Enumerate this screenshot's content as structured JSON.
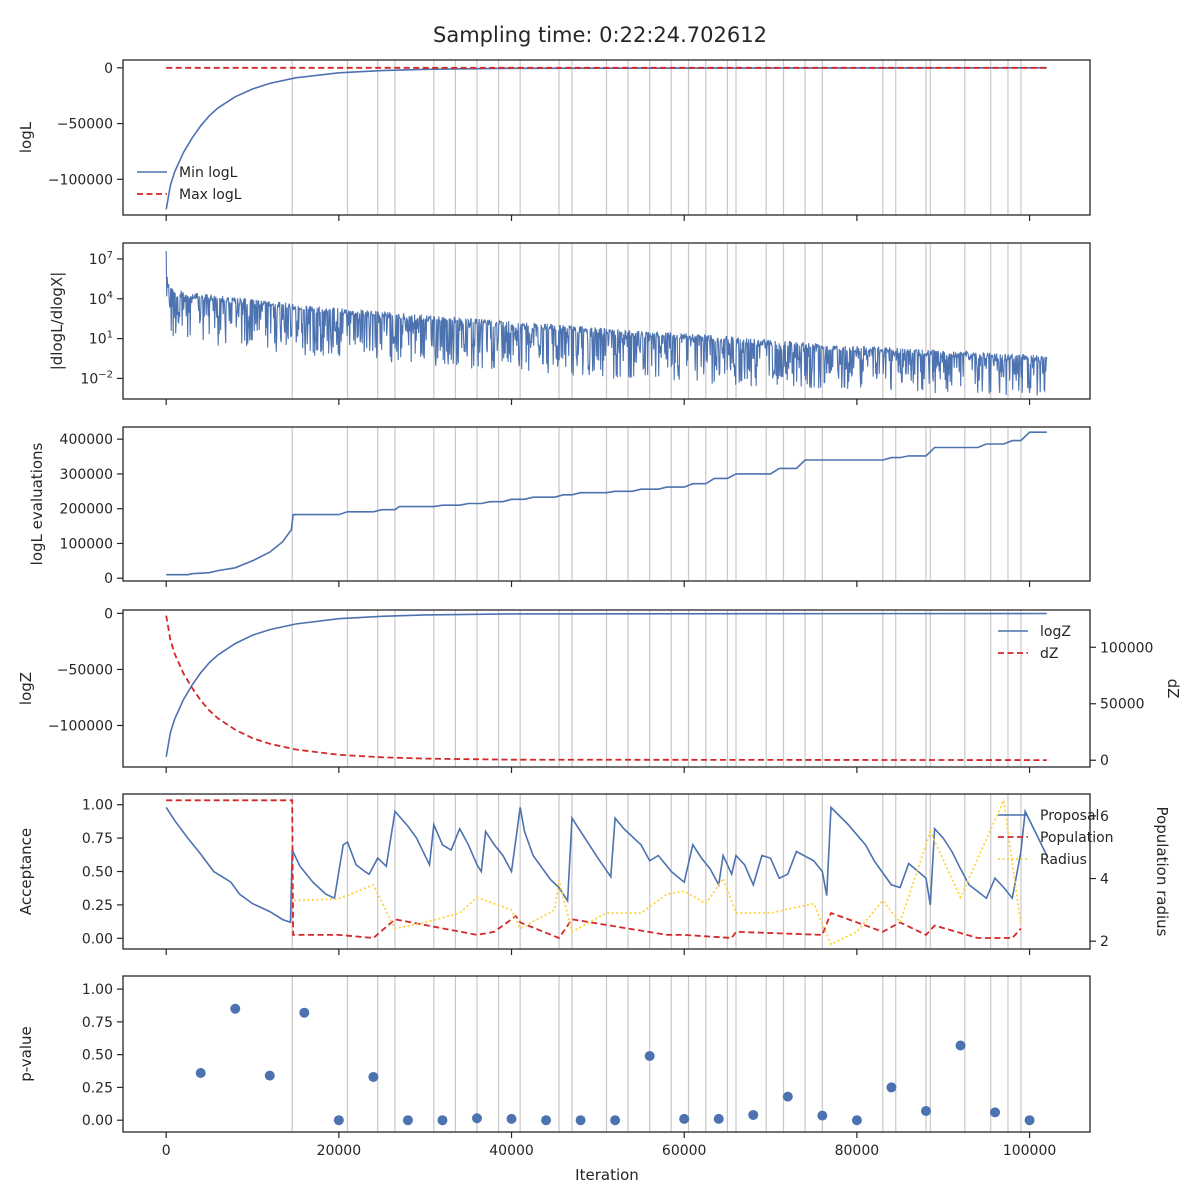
{
  "figure": {
    "title": "Sampling time: 0:22:24.702612",
    "xlabel": "Iteration"
  },
  "colors": {
    "blue": "#4c72b0",
    "red": "#d62728",
    "yellow": "#ffd43a",
    "vline": "#c8c8c8",
    "axis": "#262626"
  },
  "chart_data": [
    {
      "id": "p1",
      "type": "line",
      "ylabel": "logL",
      "xlim": [
        -5000,
        107000
      ],
      "ylim": [
        -132000,
        7000
      ],
      "yticks": [
        0,
        -50000,
        -100000
      ],
      "ytick_labels": [
        "0",
        "−50000",
        "−100000"
      ],
      "legend": {
        "position": "lower-left",
        "entries": [
          "Min logL",
          "Max logL"
        ]
      },
      "series": [
        {
          "name": "Min logL",
          "style": "solid-blue",
          "x": [
            0,
            500,
            1000,
            2000,
            3000,
            4000,
            5000,
            6000,
            8000,
            10000,
            12000,
            15000,
            20000,
            25000,
            30000,
            40000,
            102000
          ],
          "y": [
            -127000,
            -105000,
            -93000,
            -76000,
            -63000,
            -52000,
            -43000,
            -36000,
            -26000,
            -19000,
            -14000,
            -9000,
            -4500,
            -2500,
            -1300,
            -400,
            0
          ]
        },
        {
          "name": "Max logL",
          "style": "dashed-red",
          "x": [
            0,
            102000
          ],
          "y": [
            0,
            0
          ]
        }
      ]
    },
    {
      "id": "p2",
      "type": "line",
      "ylabel": "|dlogL/dlogX|",
      "yscale": "log",
      "xlim": [
        -5000,
        107000
      ],
      "ylim": [
        -3.55,
        8.2
      ],
      "yticks": [
        7,
        4,
        1,
        -2
      ],
      "ytick_labels": [
        "10^7",
        "10^4",
        "10^1",
        "10^-2"
      ],
      "series": [
        {
          "name": "",
          "style": "noisy-band",
          "x": [
            0,
            1000,
            20000,
            40000,
            60000,
            80000,
            102000
          ],
          "upper": [
            5.8,
            4.6,
            3.3,
            2.3,
            1.4,
            0.5,
            -0.3
          ],
          "lower": [
            3.6,
            2.0,
            0.8,
            -0.3,
            -1.1,
            -1.6,
            -2.1
          ],
          "peak": 7.6
        }
      ]
    },
    {
      "id": "p3",
      "type": "line",
      "ylabel": "logL evaluations",
      "xlim": [
        -5000,
        107000
      ],
      "ylim": [
        -8000,
        435000
      ],
      "yticks": [
        0,
        100000,
        200000,
        300000,
        400000
      ],
      "ytick_labels": [
        "0",
        "100000",
        "200000",
        "300000",
        "400000"
      ],
      "series": [
        {
          "name": "",
          "style": "solid-blue",
          "x": [
            0,
            2500,
            3000,
            5000,
            6000,
            8000,
            10000,
            12000,
            13500,
            14500,
            14700,
            20000,
            21000,
            24000,
            25000,
            26500,
            27000,
            31000,
            32000,
            34000,
            35000,
            36500,
            37500,
            39000,
            40000,
            41500,
            42500,
            45000,
            46000,
            47000,
            48000,
            51000,
            52000,
            54000,
            55000,
            57000,
            58000,
            60000,
            61000,
            62500,
            63500,
            65000,
            66000,
            70000,
            71000,
            73000,
            74000,
            83000,
            84000,
            85000,
            86000,
            88000,
            89000,
            94000,
            95000,
            97000,
            98000,
            99000,
            100000,
            102000
          ],
          "y": [
            10000,
            10000,
            13000,
            16000,
            22000,
            30000,
            50000,
            75000,
            105000,
            140000,
            183000,
            183000,
            191000,
            191000,
            197000,
            197000,
            206000,
            206000,
            210000,
            210000,
            215000,
            215000,
            220000,
            220000,
            227000,
            227000,
            233000,
            233000,
            240000,
            240000,
            246000,
            246000,
            250000,
            250000,
            256000,
            256000,
            262000,
            262000,
            272000,
            272000,
            287000,
            287000,
            300000,
            300000,
            316000,
            316000,
            340000,
            340000,
            347000,
            347000,
            352000,
            352000,
            376000,
            376000,
            386000,
            386000,
            396000,
            396000,
            420000,
            420000
          ]
        }
      ]
    },
    {
      "id": "p4",
      "type": "line",
      "ylabel": "logZ",
      "ylabel_right": "dZ",
      "xlim": [
        -5000,
        107000
      ],
      "ylim": [
        -137000,
        3000
      ],
      "ylim_right": [
        -6000,
        133000
      ],
      "yticks": [
        0,
        -50000,
        -100000
      ],
      "ytick_labels": [
        "0",
        "−50000",
        "−100000"
      ],
      "yticks_right": [
        0,
        50000,
        100000
      ],
      "ytick_labels_right": [
        "0",
        "50000",
        "100000"
      ],
      "legend": {
        "position": "upper-right",
        "entries": [
          "logZ",
          "dZ"
        ]
      },
      "series": [
        {
          "name": "logZ",
          "style": "solid-blue",
          "axis": "left",
          "x": [
            0,
            500,
            1000,
            2000,
            3000,
            4000,
            5000,
            6000,
            8000,
            10000,
            12000,
            15000,
            20000,
            25000,
            30000,
            40000,
            102000
          ],
          "y": [
            -128000,
            -106000,
            -94000,
            -77000,
            -64000,
            -53000,
            -44000,
            -37000,
            -27000,
            -19500,
            -14500,
            -9500,
            -4800,
            -2600,
            -1400,
            -450,
            -100
          ]
        },
        {
          "name": "dZ",
          "style": "dashed-red",
          "axis": "right",
          "x": [
            0,
            500,
            1000,
            2000,
            3000,
            4000,
            5000,
            6000,
            8000,
            10000,
            12000,
            15000,
            20000,
            25000,
            30000,
            40000,
            102000
          ],
          "y": [
            128000,
            106000,
            94000,
            77000,
            64000,
            53000,
            44000,
            37000,
            27000,
            19500,
            14500,
            9500,
            4800,
            2600,
            1400,
            450,
            100
          ]
        }
      ]
    },
    {
      "id": "p5",
      "type": "line",
      "ylabel": "Acceptance",
      "ylabel_right": "Population radius",
      "xlim": [
        -5000,
        107000
      ],
      "ylim": [
        -0.08,
        1.08
      ],
      "ylim_right": [
        1.75,
        6.7
      ],
      "yticks": [
        0,
        0.25,
        0.5,
        0.75,
        1.0
      ],
      "ytick_labels": [
        "0.00",
        "0.25",
        "0.50",
        "0.75",
        "1.00"
      ],
      "yticks_right": [
        2,
        4,
        6
      ],
      "ytick_labels_right": [
        "2",
        "4",
        "6"
      ],
      "legend": {
        "position": "upper-right",
        "entries": [
          "Proposal",
          "Population",
          "Radius"
        ]
      },
      "series": [
        {
          "name": "Proposal",
          "style": "solid-blue",
          "axis": "left",
          "x": [
            0,
            1000,
            2500,
            4000,
            5500,
            6500,
            7500,
            8500,
            10000,
            12000,
            13500,
            14400,
            14600,
            15500,
            17000,
            18500,
            19500,
            20500,
            21000,
            22000,
            23000,
            23500,
            24500,
            25500,
            26500,
            28000,
            29000,
            30500,
            31000,
            32000,
            33000,
            34000,
            35000,
            36000,
            36500,
            37000,
            38000,
            39000,
            40000,
            41000,
            41500,
            42500,
            44500,
            45500,
            46500,
            47000,
            48000,
            50000,
            51500,
            52000,
            53000,
            55000,
            56000,
            57000,
            58500,
            60000,
            61000,
            62000,
            63000,
            64000,
            64500,
            65500,
            66000,
            67000,
            68000,
            69000,
            70000,
            71000,
            72000,
            73000,
            75000,
            76000,
            76500,
            77000,
            79000,
            81000,
            82000,
            84000,
            85000,
            86000,
            88000,
            88500,
            89000,
            90000,
            91000,
            92000,
            93000,
            94000,
            95000,
            96000,
            97000,
            98000,
            99000,
            99500,
            102000
          ],
          "y": [
            0.98,
            0.88,
            0.75,
            0.63,
            0.5,
            0.46,
            0.42,
            0.33,
            0.26,
            0.2,
            0.14,
            0.12,
            0.66,
            0.54,
            0.42,
            0.33,
            0.3,
            0.7,
            0.72,
            0.55,
            0.5,
            0.48,
            0.6,
            0.54,
            0.95,
            0.84,
            0.75,
            0.55,
            0.85,
            0.7,
            0.66,
            0.82,
            0.7,
            0.55,
            0.5,
            0.8,
            0.7,
            0.62,
            0.5,
            0.98,
            0.8,
            0.62,
            0.44,
            0.38,
            0.28,
            0.9,
            0.8,
            0.6,
            0.46,
            0.9,
            0.82,
            0.7,
            0.58,
            0.62,
            0.5,
            0.42,
            0.7,
            0.6,
            0.52,
            0.4,
            0.62,
            0.48,
            0.62,
            0.55,
            0.4,
            0.62,
            0.6,
            0.45,
            0.48,
            0.65,
            0.58,
            0.5,
            0.32,
            0.98,
            0.85,
            0.7,
            0.58,
            0.4,
            0.38,
            0.56,
            0.45,
            0.25,
            0.82,
            0.75,
            0.65,
            0.52,
            0.4,
            0.35,
            0.3,
            0.45,
            0.38,
            0.3,
            0.65,
            0.95,
            0.62
          ]
        },
        {
          "name": "Population",
          "style": "dashed-red",
          "axis": "right",
          "x": [
            0,
            14600,
            14700,
            20000,
            24000,
            26500,
            36000,
            38000,
            39500,
            40500,
            41000,
            45500,
            47000,
            58000,
            60000,
            65500,
            66000,
            76000,
            77000,
            83000,
            85000,
            88000,
            89000,
            94000,
            98000,
            99000
          ],
          "y": [
            6.5,
            6.5,
            2.2,
            2.2,
            2.1,
            2.7,
            2.2,
            2.3,
            2.6,
            2.8,
            2.6,
            2.1,
            2.7,
            2.2,
            2.2,
            2.1,
            2.3,
            2.2,
            2.9,
            2.3,
            2.6,
            2.2,
            2.5,
            2.1,
            2.1,
            2.4
          ]
        },
        {
          "name": "Radius",
          "style": "dotted-yellow",
          "axis": "right",
          "x": [
            14800,
            20000,
            24000,
            26500,
            30000,
            34000,
            36000,
            40000,
            41000,
            45000,
            45500,
            47000,
            51000,
            55000,
            58000,
            60000,
            62500,
            64500,
            66000,
            70000,
            75000,
            77000,
            80000,
            83000,
            85000,
            88500,
            92000,
            97000,
            99000
          ],
          "y": [
            3.3,
            3.35,
            3.8,
            2.4,
            2.6,
            2.9,
            3.4,
            3.0,
            2.4,
            3.0,
            3.95,
            2.3,
            2.9,
            2.9,
            3.5,
            3.6,
            3.2,
            4.0,
            2.9,
            2.9,
            3.2,
            1.9,
            2.3,
            3.3,
            2.6,
            5.5,
            3.4,
            6.5,
            2.5
          ]
        }
      ]
    },
    {
      "id": "p6",
      "type": "scatter",
      "ylabel": "p-value",
      "xlim": [
        -5000,
        107000
      ],
      "ylim": [
        -0.09,
        1.1
      ],
      "yticks": [
        0,
        0.25,
        0.5,
        0.75,
        1.0
      ],
      "ytick_labels": [
        "0.00",
        "0.25",
        "0.50",
        "0.75",
        "1.00"
      ],
      "xticks": [
        0,
        20000,
        40000,
        60000,
        80000,
        100000
      ],
      "xtick_labels": [
        "0",
        "20000",
        "40000",
        "60000",
        "80000",
        "100000"
      ],
      "series": [
        {
          "name": "",
          "style": "dots-blue",
          "x": [
            4000,
            8000,
            12000,
            16000,
            20000,
            24000,
            28000,
            32000,
            36000,
            40000,
            44000,
            48000,
            52000,
            56000,
            60000,
            64000,
            68000,
            72000,
            76000,
            80000,
            84000,
            88000,
            92000,
            96000,
            100000
          ],
          "y": [
            0.36,
            0.85,
            0.34,
            0.82,
            0.0,
            0.33,
            0.0,
            0.0,
            0.015,
            0.01,
            0.0,
            0.0,
            0.0,
            0.49,
            0.01,
            0.01,
            0.04,
            0.18,
            0.035,
            0.0,
            0.25,
            0.07,
            0.57,
            0.06,
            0.0
          ]
        }
      ]
    }
  ],
  "vertical_lines": [
    14600,
    21000,
    24500,
    26500,
    31000,
    33500,
    36000,
    38500,
    41000,
    45500,
    47000,
    51000,
    53500,
    56000,
    58500,
    60500,
    62500,
    65000,
    66000,
    69500,
    71500,
    74000,
    76000,
    83000,
    84500,
    88000,
    88500,
    92500,
    95500,
    97500,
    99000
  ]
}
